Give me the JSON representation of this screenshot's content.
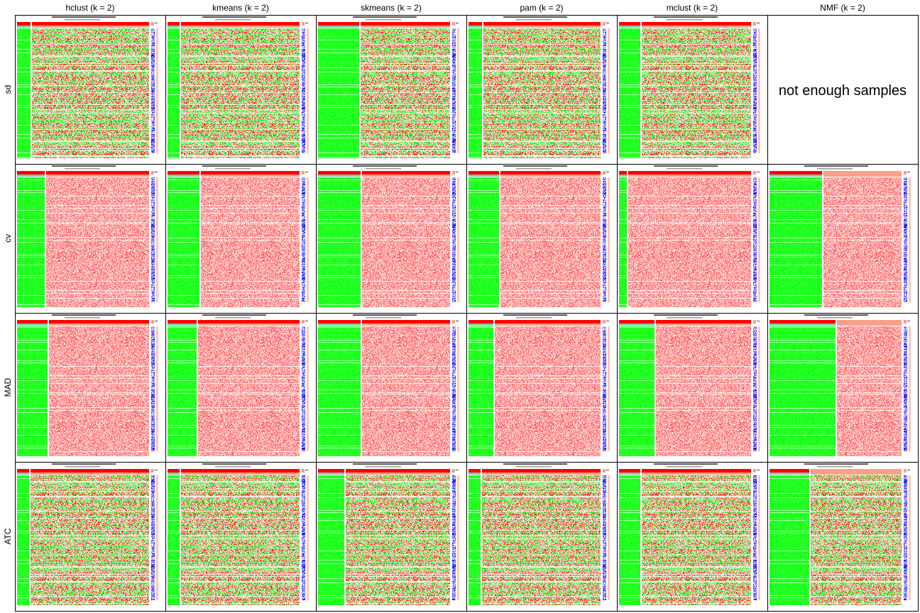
{
  "chart_data": {
    "type": "heatmap",
    "title": "",
    "columns": [
      "hclust (k = 2)",
      "kmeans (k = 2)",
      "skmeans (k = 2)",
      "pam (k = 2)",
      "mclust (k = 2)",
      "NMF (k = 2)"
    ],
    "rows": [
      "sd",
      "cv",
      "MAD",
      "ATC"
    ],
    "not_enough_samples_text": "not enough samples",
    "missing_cells": [
      {
        "row": "sd",
        "column": "NMF (k = 2)"
      }
    ],
    "colors": {
      "high": "#ff0000",
      "mid": "#ffffff",
      "low": "#00ff00",
      "group1": "#ff0000",
      "group2": "#f8a088",
      "silhouette": "#7fc7af",
      "signature_high": "#0000ff",
      "frame": "#000000"
    },
    "panel_split_fraction": {
      "sd": [
        0.1,
        0.09,
        0.31,
        0.1,
        0.16,
        null
      ],
      "cv": [
        0.21,
        0.24,
        0.32,
        0.23,
        0.06,
        0.4
      ],
      "MAD": [
        0.23,
        0.22,
        0.32,
        0.19,
        0.27,
        0.5
      ],
      "ATC": [
        0.09,
        0.09,
        0.2,
        0.09,
        0.16,
        0.3
      ]
    }
  }
}
